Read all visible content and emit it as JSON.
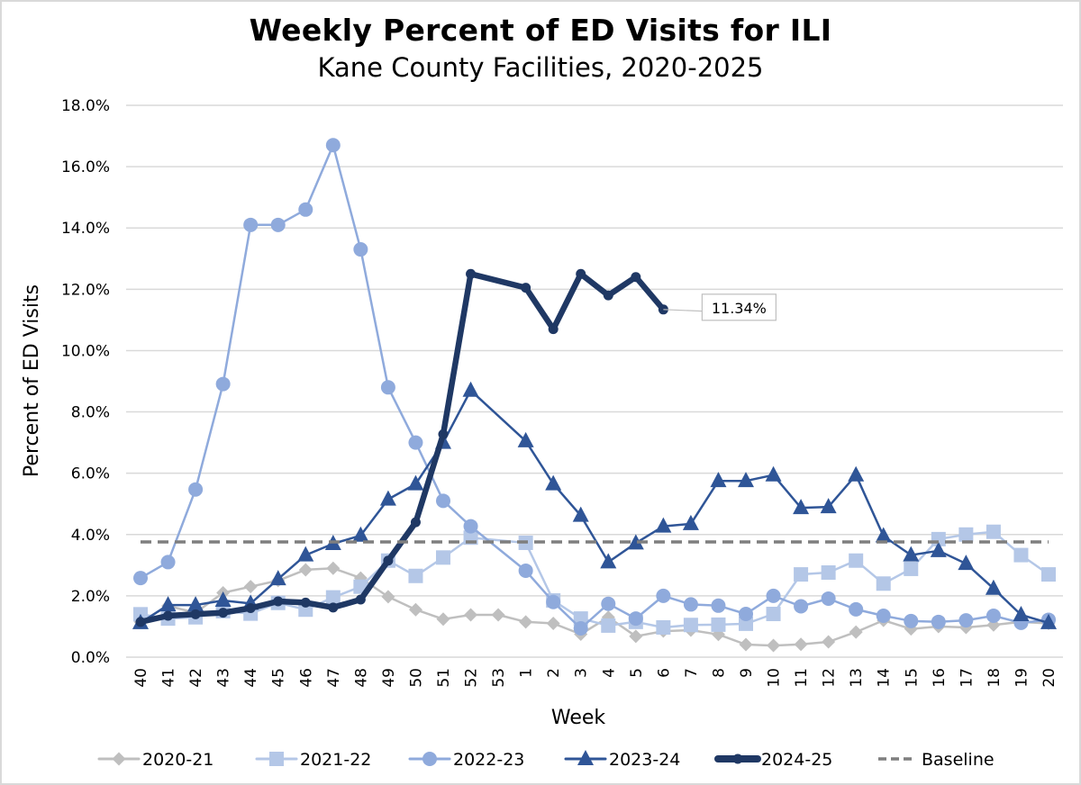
{
  "chart_data": {
    "type": "line",
    "title": "Weekly Percent of ED Visits for ILI",
    "subtitle": "Kane County Facilities, 2020-2025",
    "xlabel": "Week",
    "ylabel": "Percent of ED Visits",
    "ylim": [
      0,
      18
    ],
    "yticks": [
      0,
      2,
      4,
      6,
      8,
      10,
      12,
      14,
      16,
      18
    ],
    "ytick_labels": [
      "0.0%",
      "2.0%",
      "4.0%",
      "6.0%",
      "8.0%",
      "10.0%",
      "12.0%",
      "14.0%",
      "16.0%",
      "18.0%"
    ],
    "grid": "horizontal",
    "legend_position": "bottom",
    "categories": [
      "40",
      "41",
      "42",
      "43",
      "44",
      "45",
      "46",
      "47",
      "48",
      "49",
      "50",
      "51",
      "52",
      "53",
      "1",
      "2",
      "3",
      "4",
      "5",
      "6",
      "7",
      "8",
      "9",
      "10",
      "11",
      "12",
      "13",
      "14",
      "15",
      "16",
      "17",
      "18",
      "19",
      "20"
    ],
    "series": [
      {
        "name": "2020-21",
        "color": "#bfbfbf",
        "marker": "diamond",
        "values": [
          1.15,
          1.67,
          1.45,
          2.1,
          2.3,
          2.5,
          2.85,
          2.9,
          2.58,
          1.97,
          1.55,
          1.24,
          1.38,
          1.38,
          1.15,
          1.1,
          0.75,
          1.3,
          0.68,
          0.85,
          0.88,
          0.74,
          0.41,
          0.38,
          0.42,
          0.5,
          0.82,
          1.2,
          0.92,
          1.0,
          0.97,
          1.05,
          1.15,
          1.1
        ]
      },
      {
        "name": "2021-22",
        "color": "#b4c7e7",
        "marker": "square",
        "values": [
          1.4,
          1.26,
          1.3,
          1.5,
          1.42,
          1.77,
          1.55,
          1.95,
          2.3,
          3.15,
          2.65,
          3.25,
          3.9,
          null,
          3.73,
          1.85,
          1.26,
          1.03,
          1.15,
          0.97,
          1.05,
          1.06,
          1.09,
          1.41,
          2.7,
          2.76,
          3.15,
          2.4,
          2.88,
          3.85,
          4.0,
          4.09,
          3.33,
          2.7
        ]
      },
      {
        "name": "2022-23",
        "color": "#8faadc",
        "marker": "circle",
        "values": [
          2.58,
          3.1,
          5.47,
          8.91,
          14.1,
          14.1,
          14.6,
          16.7,
          13.3,
          8.8,
          7.0,
          5.1,
          4.27,
          null,
          2.82,
          1.8,
          0.94,
          1.74,
          1.26,
          2.0,
          1.72,
          1.68,
          1.41,
          2.0,
          1.66,
          1.91,
          1.56,
          1.35,
          1.18,
          1.15,
          1.2,
          1.35,
          1.12,
          1.22
        ]
      },
      {
        "name": "2023-24",
        "color": "#2f5597",
        "marker": "triangle",
        "values": [
          1.12,
          1.7,
          1.7,
          1.85,
          1.75,
          2.55,
          3.33,
          3.7,
          3.97,
          5.15,
          5.65,
          7.0,
          8.7,
          null,
          7.05,
          5.65,
          4.62,
          3.1,
          3.72,
          4.27,
          4.35,
          5.75,
          5.75,
          5.94,
          4.87,
          4.9,
          5.94,
          3.95,
          3.33,
          3.47,
          3.05,
          2.24,
          1.38,
          1.12
        ]
      },
      {
        "name": "2024-25",
        "color": "#1f3864",
        "marker": "circle-small",
        "values": [
          1.15,
          1.35,
          1.4,
          1.45,
          1.6,
          1.82,
          1.78,
          1.62,
          1.88,
          3.15,
          4.4,
          7.27,
          12.5,
          null,
          12.05,
          10.7,
          12.5,
          11.8,
          12.4,
          11.34,
          null,
          null,
          null,
          null,
          null,
          null,
          null,
          null,
          null,
          null,
          null,
          null,
          null,
          null
        ]
      },
      {
        "name": "Baseline",
        "color": "#7f7f7f",
        "marker": "none",
        "dashed": true,
        "values": [
          3.76,
          3.76,
          3.76,
          3.76,
          3.76,
          3.76,
          3.76,
          3.76,
          3.76,
          3.76,
          3.76,
          3.76,
          3.76,
          3.76,
          3.76,
          3.76,
          3.76,
          3.76,
          3.76,
          3.76,
          3.76,
          3.76,
          3.76,
          3.76,
          3.76,
          3.76,
          3.76,
          3.76,
          3.76,
          3.76,
          3.76,
          3.76,
          3.76,
          3.76
        ]
      }
    ],
    "annotations": [
      {
        "series": "2024-25",
        "category": "6",
        "text": "11.34%"
      }
    ]
  }
}
